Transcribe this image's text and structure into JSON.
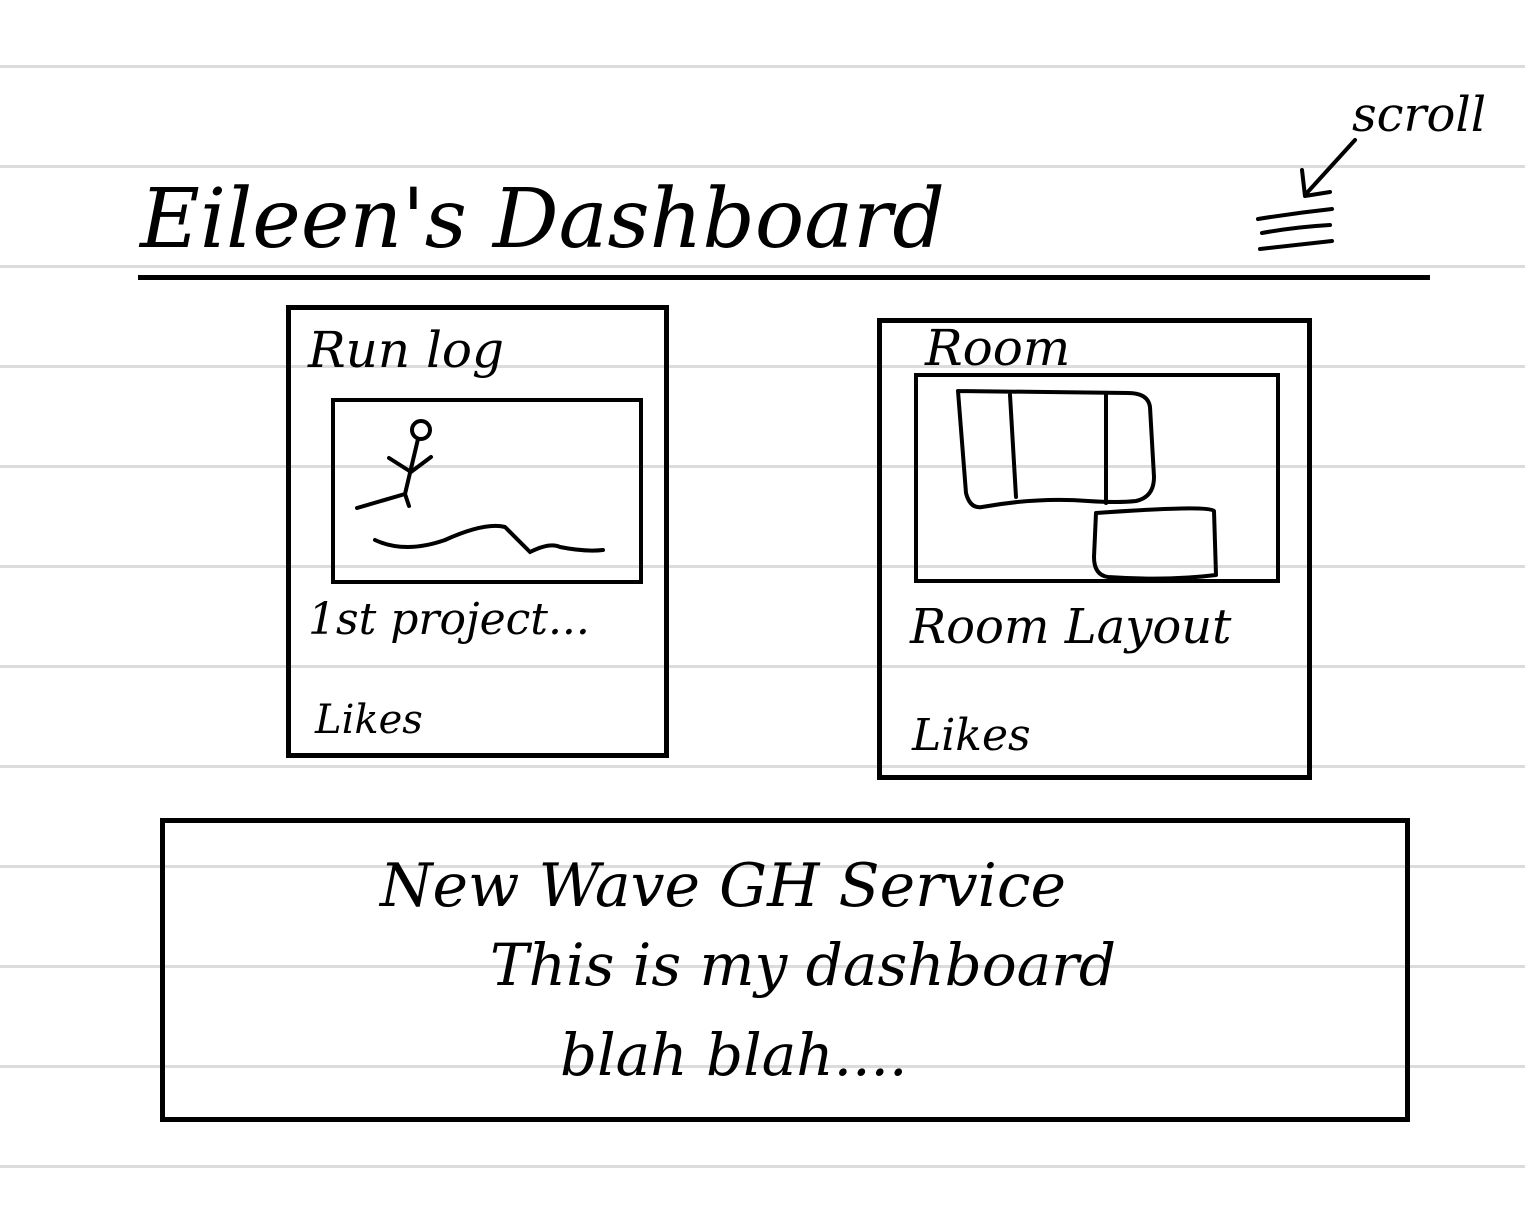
{
  "header": {
    "title": "Eileen's Dashboard",
    "menu_annotation": "scroll"
  },
  "cards": [
    {
      "title": "Run log",
      "subtitle": "1st project...",
      "likes_label": "Likes"
    },
    {
      "title": "Room",
      "subtitle": "Room Layout",
      "likes_label": "Likes"
    }
  ],
  "banner": {
    "line1": "New Wave GH Service",
    "line2": "This is my dashboard",
    "line3": "blah blah...."
  }
}
